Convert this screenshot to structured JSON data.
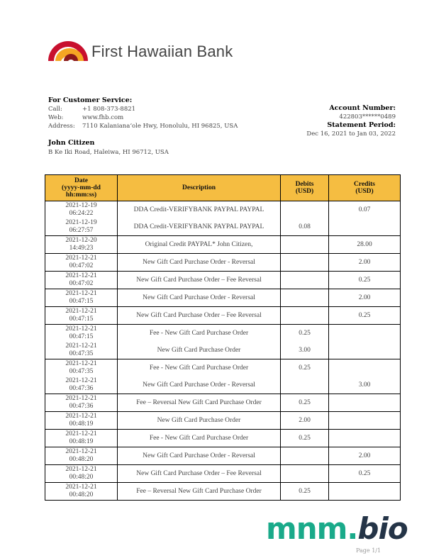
{
  "bank": {
    "name": "First Hawaiian Bank",
    "logo_colors": [
      "#c8102e",
      "#f5a623"
    ]
  },
  "customer_service": {
    "title": "For Customer Service:",
    "call_label": "Call:",
    "call": "+1 808-373-8821",
    "web_label": "Web:",
    "web": "www.fhb.com",
    "address_label": "Address:",
    "address": "7110 Kalaniana‘ole Hwy, Honolulu, HI 96825, USA"
  },
  "customer": {
    "name": "John Citizen",
    "address": "B Ke Iki Road, Haleiwa, HI 96712, USA"
  },
  "account": {
    "number_label": "Account Number:",
    "number": "422803******0489",
    "period_label": "Statement Period:",
    "period": "Dec 16, 2021 to Jan 03, 2022"
  },
  "table": {
    "headers": [
      "Date\n(yyyy-mm-dd\nhh:mm:ss)",
      "Description",
      "Debits\n(USD)",
      "Credits\n(USD)"
    ],
    "header_color": "#f5bd41",
    "rows": [
      {
        "date": "2021-12-19",
        "time": "06:24:22",
        "desc": "DDA Credit-VERIFYBANK PAYPAL PAYPAL",
        "debit": "",
        "credit": "0.07"
      },
      {
        "date": "2021-12-19",
        "time": "06:27:57",
        "desc": "DDA Credit-VERIFYBANK PAYPAL PAYPAL",
        "debit": "0.08",
        "credit": "",
        "cont": true
      },
      {
        "date": "2021-12-20",
        "time": "14:49:23",
        "desc": "Original Credit PAYPAL* John Citizen,",
        "debit": "",
        "credit": "28.00"
      },
      {
        "date": "2021-12-21",
        "time": "00:47:02",
        "desc": "New Gift Card Purchase Order - Reversal",
        "debit": "",
        "credit": "2.00"
      },
      {
        "date": "2021-12-21",
        "time": "00:47:02",
        "desc": "New Gift Card Purchase Order – Fee Reversal",
        "debit": "",
        "credit": "0.25"
      },
      {
        "date": "2021-12-21",
        "time": "00:47:15",
        "desc": "New Gift Card Purchase Order - Reversal",
        "debit": "",
        "credit": "2.00"
      },
      {
        "date": "2021-12-21",
        "time": "00:47:15",
        "desc": "New Gift Card Purchase Order – Fee Reversal",
        "debit": "",
        "credit": "0.25"
      },
      {
        "date": "2021-12-21",
        "time": "00:47:15",
        "desc": "Fee - New Gift Card Purchase Order",
        "debit": "0.25",
        "credit": ""
      },
      {
        "date": "2021-12-21",
        "time": "00:47:35",
        "desc": "New Gift Card Purchase Order",
        "debit": "3.00",
        "credit": "",
        "cont": true
      },
      {
        "date": "2021-12-21",
        "time": "00:47:35",
        "desc": "Fee - New Gift Card Purchase Order",
        "debit": "0.25",
        "credit": ""
      },
      {
        "date": "2021-12-21",
        "time": "00:47:36",
        "desc": "New Gift Card Purchase Order - Reversal",
        "debit": "",
        "credit": "3.00",
        "cont": true
      },
      {
        "date": "2021-12-21",
        "time": "00:47:36",
        "desc": "Fee – Reversal New Gift Card Purchase Order",
        "debit": "0.25",
        "credit": ""
      },
      {
        "date": "2021-12-21",
        "time": "00:48:19",
        "desc": "New Gift Card Purchase Order",
        "debit": "2.00",
        "credit": ""
      },
      {
        "date": "2021-12-21",
        "time": "00:48:19",
        "desc": "Fee - New Gift Card Purchase Order",
        "debit": "0.25",
        "credit": ""
      },
      {
        "date": "2021-12-21",
        "time": "00:48:20",
        "desc": "New Gift Card Purchase Order - Reversal",
        "debit": "",
        "credit": "2.00"
      },
      {
        "date": "2021-12-21",
        "time": "00:48:20",
        "desc": "New Gift Card Purchase Order – Fee Reversal",
        "debit": "",
        "credit": "0.25"
      },
      {
        "date": "2021-12-21",
        "time": "00:48:20",
        "desc": "Fee – Reversal New Gift Card Purchase Order",
        "debit": "0.25",
        "credit": ""
      }
    ]
  },
  "watermark": {
    "part1": "mnm.",
    "part2": "bio"
  },
  "footer": {
    "page": "Page 1/1"
  }
}
